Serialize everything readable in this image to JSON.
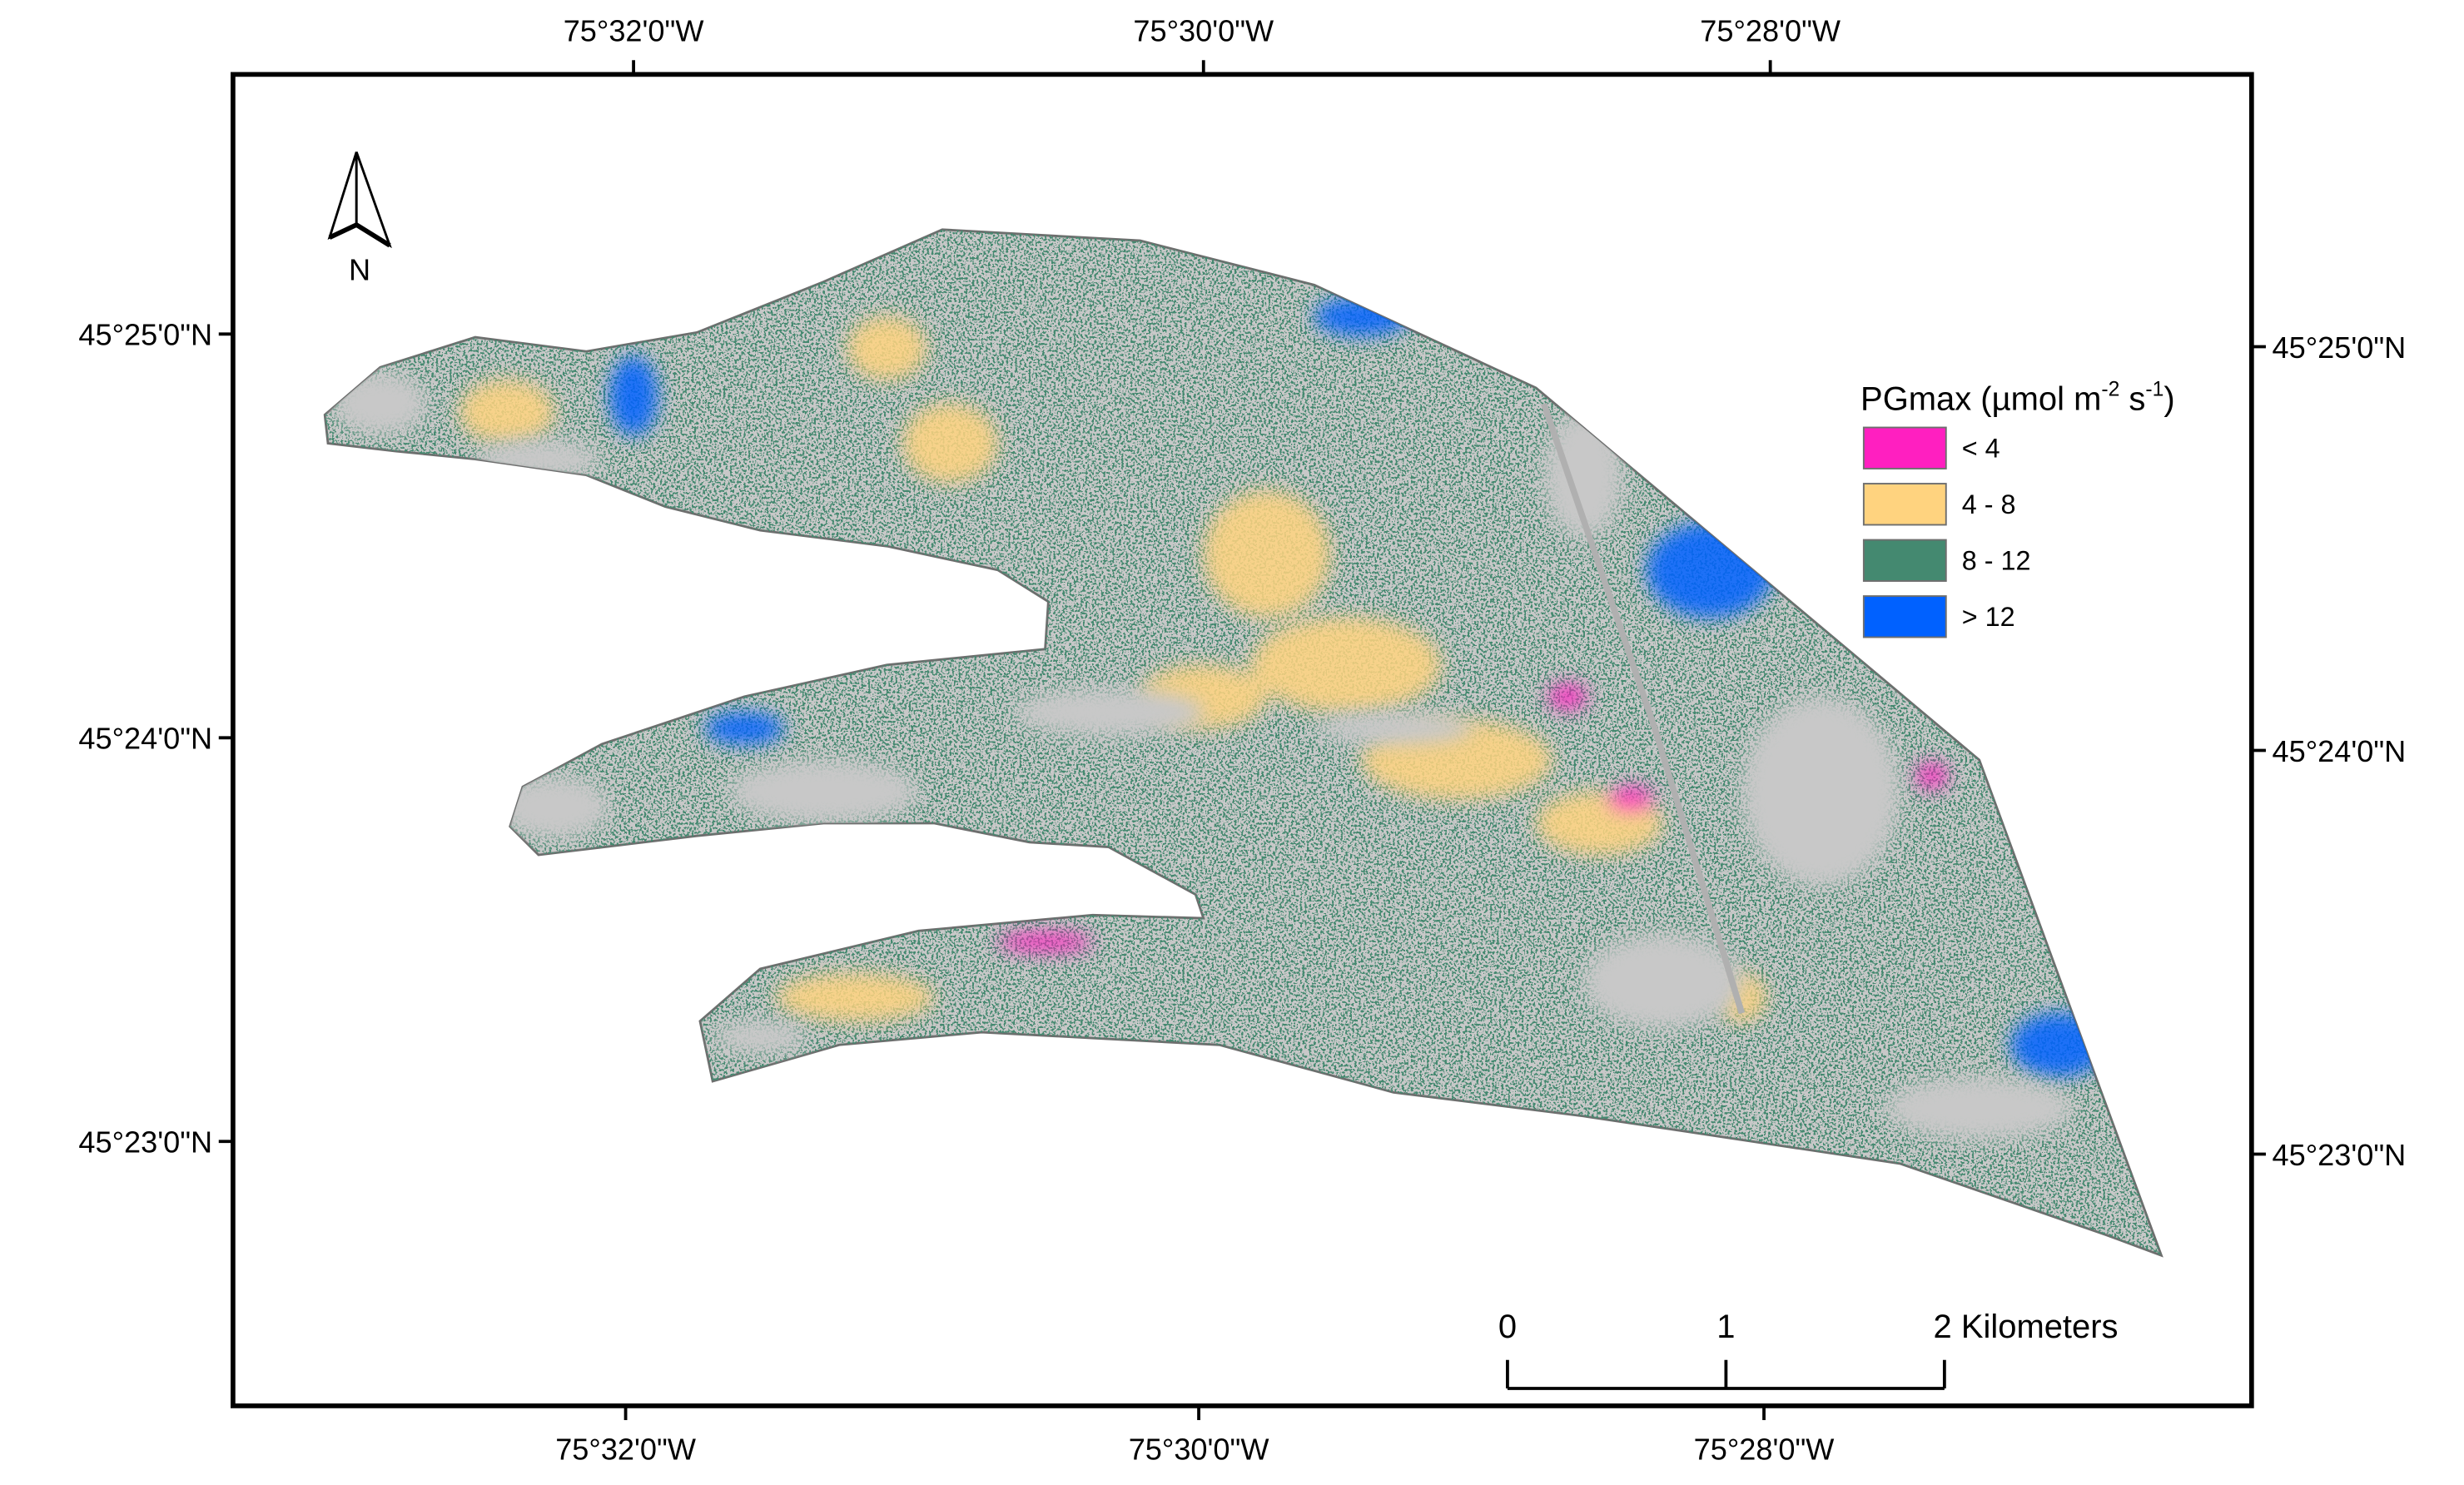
{
  "map": {
    "graticule": {
      "top": [
        "75°32'0\"W",
        "75°30'0\"W",
        "75°28'0\"W"
      ],
      "bottom": [
        "75°32'0\"W",
        "75°30'0\"W",
        "75°28'0\"W"
      ],
      "left": [
        "45°25'0\"N",
        "45°24'0\"N",
        "45°23'0\"N"
      ],
      "right": [
        "45°25'0\"N",
        "45°24'0\"N",
        "45°23'0\"N"
      ]
    },
    "north_arrow": "N",
    "legend": {
      "title": {
        "text": "PGmax (µmol m",
        "exp1": "-2",
        "mid": " s",
        "exp2": "-1",
        "end": ")"
      },
      "items": [
        {
          "label": "< 4",
          "color": "#ff1fc0"
        },
        {
          "label": "4 - 8",
          "color": "#ffd37f"
        },
        {
          "label": "8 - 12",
          "color": "#448970"
        },
        {
          "label": "> 12",
          "color": "#0061ff"
        }
      ]
    },
    "scale_bar": [
      "0",
      "1",
      "2 Kilometers"
    ]
  }
}
